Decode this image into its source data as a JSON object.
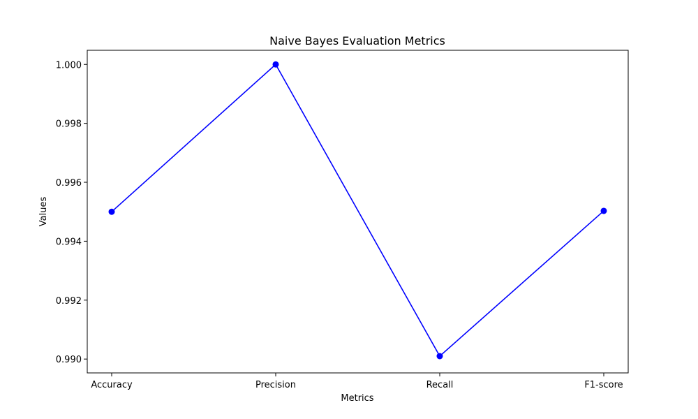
{
  "chart_data": {
    "type": "line",
    "title": "Naive Bayes Evaluation Metrics",
    "xlabel": "Metrics",
    "ylabel": "Values",
    "categories": [
      "Accuracy",
      "Precision",
      "Recall",
      "F1-score"
    ],
    "series": [
      {
        "values": [
          0.995,
          1.0,
          0.9901,
          0.99503
        ],
        "color": "#0000ff",
        "marker": "circle"
      }
    ],
    "ylim": [
      0.98953,
      1.00048
    ],
    "yticks": [
      0.99,
      0.992,
      0.994,
      0.996,
      0.998,
      1.0
    ],
    "ytick_labels": [
      "0.990",
      "0.992",
      "0.994",
      "0.996",
      "0.998",
      "1.000"
    ],
    "grid": false,
    "legend": false
  }
}
